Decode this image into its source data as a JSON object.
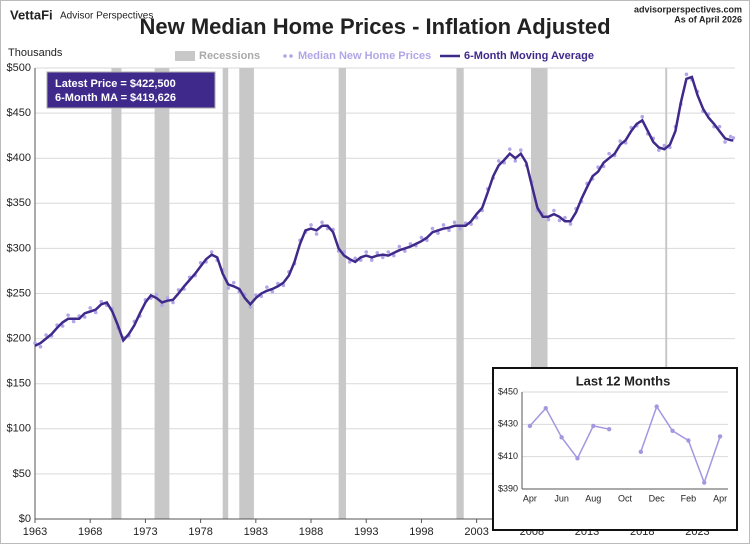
{
  "chart_data": [
    {
      "type": "line",
      "title": "New Median Home Prices - Inflation Adjusted",
      "brand": "VettaFi",
      "brand_sub": "Advisor Perspectives",
      "source": "advisorperspectives.com",
      "date_note": "As of April 2026",
      "ylabel": "Thousands",
      "annotations": [
        "Latest Price = $422,500",
        "6-Month MA = $419,626"
      ],
      "xlim": [
        1963,
        2026.4
      ],
      "xticks": [
        1963,
        1968,
        1973,
        1978,
        1983,
        1988,
        1993,
        1998,
        2003,
        2008,
        2013,
        2018,
        2023
      ],
      "ylim": [
        0,
        500
      ],
      "yticks": [
        {
          "value": 0,
          "label": "$0"
        },
        {
          "value": 50,
          "label": "$50"
        },
        {
          "value": 100,
          "label": "$100"
        },
        {
          "value": 150,
          "label": "$150"
        },
        {
          "value": 200,
          "label": "$200"
        },
        {
          "value": 250,
          "label": "$250"
        },
        {
          "value": 300,
          "label": "$300"
        },
        {
          "value": 350,
          "label": "$350"
        },
        {
          "value": 400,
          "label": "$400"
        },
        {
          "value": 450,
          "label": "$450"
        },
        {
          "value": 500,
          "label": "$500"
        }
      ],
      "recessions": {
        "name": "Recessions",
        "color": "#c8c8c8",
        "periods": [
          [
            1969.92,
            1970.83
          ],
          [
            1973.83,
            1975.17
          ],
          [
            1980.0,
            1980.5
          ],
          [
            1981.5,
            1982.83
          ],
          [
            1990.5,
            1991.17
          ],
          [
            2001.17,
            2001.83
          ],
          [
            2007.92,
            2009.42
          ],
          [
            2020.08,
            2020.25
          ]
        ]
      },
      "x": [
        1963,
        1963.5,
        1964,
        1964.5,
        1965,
        1965.5,
        1966,
        1966.5,
        1967,
        1967.5,
        1968,
        1968.5,
        1969,
        1969.5,
        1970,
        1970.5,
        1971,
        1971.5,
        1972,
        1972.5,
        1973,
        1973.5,
        1974,
        1974.5,
        1975,
        1975.5,
        1976,
        1976.5,
        1977,
        1977.5,
        1978,
        1978.5,
        1979,
        1979.5,
        1980,
        1980.5,
        1981,
        1981.5,
        1982,
        1982.5,
        1983,
        1983.5,
        1984,
        1984.5,
        1985,
        1985.5,
        1986,
        1986.5,
        1987,
        1987.5,
        1988,
        1988.5,
        1989,
        1989.5,
        1990,
        1990.5,
        1991,
        1991.5,
        1992,
        1992.5,
        1993,
        1993.5,
        1994,
        1994.5,
        1995,
        1995.5,
        1996,
        1996.5,
        1997,
        1997.5,
        1998,
        1998.5,
        1999,
        1999.5,
        2000,
        2000.5,
        2001,
        2001.5,
        2002,
        2002.5,
        2003,
        2003.5,
        2004,
        2004.5,
        2005,
        2005.5,
        2006,
        2006.5,
        2007,
        2007.5,
        2008,
        2008.5,
        2009,
        2009.5,
        2010,
        2010.5,
        2011,
        2011.5,
        2012,
        2012.5,
        2013,
        2013.5,
        2014,
        2014.5,
        2015,
        2015.5,
        2016,
        2016.5,
        2017,
        2017.5,
        2018,
        2018.5,
        2019,
        2019.5,
        2020,
        2020.5,
        2021,
        2021.5,
        2022,
        2022.5,
        2023,
        2023.5,
        2024,
        2024.5,
        2025,
        2025.5,
        2026,
        2026.25
      ],
      "series": [
        {
          "name": "Median New Home Prices",
          "color": "#b3a6e6",
          "style": "dots",
          "values": [
            195,
            191,
            204,
            203,
            215,
            214,
            226,
            219,
            225,
            224,
            234,
            229,
            241,
            237,
            233,
            212,
            201,
            203,
            219,
            225,
            243,
            245,
            249,
            237,
            245,
            240,
            254,
            255,
            268,
            270,
            284,
            285,
            296,
            287,
            276,
            256,
            262,
            252,
            249,
            235,
            248,
            247,
            257,
            252,
            261,
            259,
            274,
            283,
            309,
            318,
            326,
            316,
            329,
            322,
            321,
            297,
            296,
            285,
            289,
            287,
            296,
            287,
            295,
            290,
            296,
            292,
            302,
            297,
            305,
            303,
            312,
            309,
            322,
            317,
            326,
            320,
            329,
            322,
            328,
            327,
            334,
            342,
            366,
            378,
            397,
            395,
            410,
            397,
            409,
            392,
            374,
            342,
            339,
            332,
            342,
            331,
            334,
            327,
            344,
            352,
            372,
            377,
            390,
            391,
            405,
            403,
            419,
            417,
            434,
            436,
            446,
            427,
            422,
            409,
            414,
            412,
            435,
            460,
            493,
            487,
            474,
            452,
            449,
            435,
            435,
            418,
            424,
            422.5
          ]
        },
        {
          "name": "6-Month Moving Average",
          "color": "#3f2a8c",
          "style": "line",
          "values": [
            192,
            195,
            200,
            205,
            212,
            218,
            222,
            222,
            222,
            228,
            230,
            232,
            238,
            240,
            230,
            215,
            198,
            205,
            215,
            228,
            240,
            248,
            245,
            240,
            242,
            243,
            250,
            258,
            265,
            272,
            280,
            288,
            293,
            290,
            272,
            260,
            258,
            255,
            245,
            238,
            245,
            250,
            253,
            255,
            258,
            262,
            270,
            285,
            305,
            320,
            322,
            320,
            325,
            325,
            318,
            300,
            292,
            288,
            285,
            290,
            292,
            290,
            292,
            293,
            292,
            295,
            298,
            300,
            302,
            305,
            308,
            312,
            318,
            320,
            322,
            323,
            325,
            325,
            325,
            330,
            338,
            345,
            362,
            380,
            392,
            398,
            405,
            400,
            405,
            395,
            370,
            345,
            335,
            335,
            338,
            335,
            330,
            330,
            340,
            355,
            368,
            380,
            385,
            395,
            400,
            405,
            415,
            420,
            430,
            438,
            442,
            430,
            418,
            412,
            410,
            415,
            430,
            462,
            488,
            490,
            470,
            455,
            445,
            438,
            430,
            422,
            420,
            419.626
          ]
        }
      ]
    },
    {
      "type": "line",
      "title": "Last 12 Months",
      "categories": [
        "Apr",
        null,
        "Jun",
        null,
        "Aug",
        null,
        "Oct",
        null,
        "Dec",
        null,
        "Feb",
        null,
        "Apr"
      ],
      "ylim": [
        390,
        450
      ],
      "yticks": [
        {
          "value": 390,
          "label": "$390"
        },
        {
          "value": 410,
          "label": "$410"
        },
        {
          "value": 430,
          "label": "$430"
        },
        {
          "value": 450,
          "label": "$450"
        }
      ],
      "series": [
        {
          "name": "Median New Home Prices",
          "color": "#a596e0",
          "style": "markers-line",
          "values": [
            429,
            440,
            422,
            409,
            429,
            427,
            null,
            413,
            441,
            426,
            420,
            394,
            422.5
          ]
        }
      ]
    }
  ]
}
